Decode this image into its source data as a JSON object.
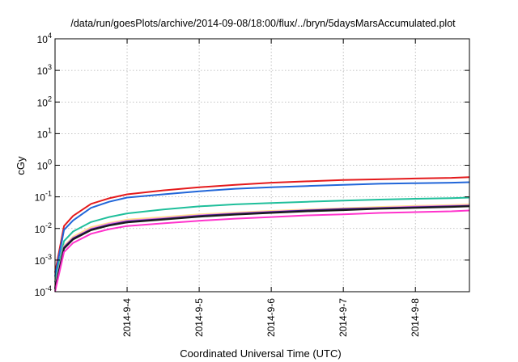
{
  "chart_data": {
    "type": "line",
    "title": "/data/run/goesPlots/archive/2014-09-08/18:00/flux/../bryn/5daysMarsAccumulated.plot",
    "xlabel": "Coordinated Universal Time (UTC)",
    "ylabel": "cGy",
    "yscale": "log",
    "ylim": [
      0.0001,
      10000
    ],
    "y_ticks": [
      {
        "base": "10",
        "exp": "-4",
        "value": 0.0001
      },
      {
        "base": "10",
        "exp": "-3",
        "value": 0.001
      },
      {
        "base": "10",
        "exp": "-2",
        "value": 0.01
      },
      {
        "base": "10",
        "exp": "-1",
        "value": 0.1
      },
      {
        "base": "10",
        "exp": "0",
        "value": 1
      },
      {
        "base": "10",
        "exp": "1",
        "value": 10
      },
      {
        "base": "10",
        "exp": "2",
        "value": 100
      },
      {
        "base": "10",
        "exp": "3",
        "value": 1000
      },
      {
        "base": "10",
        "exp": "4",
        "value": 10000
      }
    ],
    "xlim": [
      "2014-09-03 00:00",
      "2014-09-08 18:00"
    ],
    "x_ticks": [
      "2014-9-4",
      "2014-9-5",
      "2014-9-6",
      "2014-9-7",
      "2014-9-8"
    ],
    "grid": true,
    "series": [
      {
        "color": "#e41a1c",
        "x": [
          "2014-09-03 00:00",
          "2014-09-03 03:00",
          "2014-09-03 06:00",
          "2014-09-03 12:00",
          "2014-09-03 18:00",
          "2014-09-04 00:00",
          "2014-09-04 12:00",
          "2014-09-05 00:00",
          "2014-09-05 12:00",
          "2014-09-06 00:00",
          "2014-09-06 12:00",
          "2014-09-07 00:00",
          "2014-09-07 12:00",
          "2014-09-08 00:00",
          "2014-09-08 12:00",
          "2014-09-08 18:00"
        ],
        "values": [
          0.0004,
          0.012,
          0.025,
          0.06,
          0.09,
          0.12,
          0.16,
          0.2,
          0.24,
          0.28,
          0.31,
          0.34,
          0.36,
          0.38,
          0.4,
          0.42
        ]
      },
      {
        "color": "#2166d9",
        "x": [
          "2014-09-03 00:00",
          "2014-09-03 03:00",
          "2014-09-03 06:00",
          "2014-09-03 12:00",
          "2014-09-03 18:00",
          "2014-09-04 00:00",
          "2014-09-04 12:00",
          "2014-09-05 00:00",
          "2014-09-05 12:00",
          "2014-09-06 00:00",
          "2014-09-06 12:00",
          "2014-09-07 00:00",
          "2014-09-07 12:00",
          "2014-09-08 00:00",
          "2014-09-08 12:00",
          "2014-09-08 18:00"
        ],
        "values": [
          0.0003,
          0.009,
          0.018,
          0.045,
          0.07,
          0.095,
          0.12,
          0.15,
          0.18,
          0.2,
          0.22,
          0.24,
          0.26,
          0.27,
          0.28,
          0.29
        ]
      },
      {
        "color": "#1fbf9b",
        "x": [
          "2014-09-03 00:00",
          "2014-09-03 03:00",
          "2014-09-03 06:00",
          "2014-09-03 12:00",
          "2014-09-03 18:00",
          "2014-09-04 00:00",
          "2014-09-04 12:00",
          "2014-09-05 00:00",
          "2014-09-05 12:00",
          "2014-09-06 00:00",
          "2014-09-06 12:00",
          "2014-09-07 00:00",
          "2014-09-07 12:00",
          "2014-09-08 00:00",
          "2014-09-08 12:00",
          "2014-09-08 18:00"
        ],
        "values": [
          0.0002,
          0.004,
          0.008,
          0.016,
          0.023,
          0.03,
          0.04,
          0.05,
          0.058,
          0.064,
          0.07,
          0.076,
          0.082,
          0.087,
          0.091,
          0.095
        ]
      },
      {
        "color": "#ffe08a",
        "x": [
          "2014-09-03 00:00",
          "2014-09-03 03:00",
          "2014-09-03 06:00",
          "2014-09-03 12:00",
          "2014-09-03 18:00",
          "2014-09-04 00:00",
          "2014-09-04 12:00",
          "2014-09-05 00:00",
          "2014-09-05 12:00",
          "2014-09-06 00:00",
          "2014-09-06 12:00",
          "2014-09-07 00:00",
          "2014-09-07 12:00",
          "2014-09-08 00:00",
          "2014-09-08 12:00",
          "2014-09-08 18:00"
        ],
        "values": [
          0.00015,
          0.0028,
          0.0055,
          0.011,
          0.015,
          0.019,
          0.023,
          0.028,
          0.032,
          0.036,
          0.04,
          0.044,
          0.048,
          0.052,
          0.055,
          0.058
        ]
      },
      {
        "color": "#e879e8",
        "x": [
          "2014-09-03 00:00",
          "2014-09-03 03:00",
          "2014-09-03 06:00",
          "2014-09-03 12:00",
          "2014-09-03 18:00",
          "2014-09-04 00:00",
          "2014-09-04 12:00",
          "2014-09-05 00:00",
          "2014-09-05 12:00",
          "2014-09-06 00:00",
          "2014-09-06 12:00",
          "2014-09-07 00:00",
          "2014-09-07 12:00",
          "2014-09-08 00:00",
          "2014-09-08 12:00",
          "2014-09-08 18:00"
        ],
        "values": [
          0.00014,
          0.0026,
          0.005,
          0.0098,
          0.014,
          0.0175,
          0.021,
          0.026,
          0.03,
          0.034,
          0.038,
          0.042,
          0.045,
          0.049,
          0.052,
          0.054
        ]
      },
      {
        "color": "#3a1a7a",
        "x": [
          "2014-09-03 00:00",
          "2014-09-03 03:00",
          "2014-09-03 06:00",
          "2014-09-03 12:00",
          "2014-09-03 18:00",
          "2014-09-04 00:00",
          "2014-09-04 12:00",
          "2014-09-05 00:00",
          "2014-09-05 12:00",
          "2014-09-06 00:00",
          "2014-09-06 12:00",
          "2014-09-07 00:00",
          "2014-09-07 12:00",
          "2014-09-08 00:00",
          "2014-09-08 12:00",
          "2014-09-08 18:00"
        ],
        "values": [
          0.00013,
          0.0025,
          0.0048,
          0.0093,
          0.013,
          0.0165,
          0.02,
          0.025,
          0.029,
          0.033,
          0.037,
          0.041,
          0.044,
          0.047,
          0.05,
          0.052
        ]
      },
      {
        "color": "#1a1a1a",
        "x": [
          "2014-09-03 00:00",
          "2014-09-03 03:00",
          "2014-09-03 06:00",
          "2014-09-03 12:00",
          "2014-09-03 18:00",
          "2014-09-04 00:00",
          "2014-09-04 12:00",
          "2014-09-05 00:00",
          "2014-09-05 12:00",
          "2014-09-06 00:00",
          "2014-09-06 12:00",
          "2014-09-07 00:00",
          "2014-09-07 12:00",
          "2014-09-08 00:00",
          "2014-09-08 12:00",
          "2014-09-08 18:00"
        ],
        "values": [
          0.00012,
          0.0023,
          0.0045,
          0.0088,
          0.0124,
          0.0155,
          0.019,
          0.0235,
          0.0275,
          0.031,
          0.035,
          0.038,
          0.042,
          0.045,
          0.048,
          0.05
        ]
      },
      {
        "color": "#ff33cc",
        "x": [
          "2014-09-03 00:00",
          "2014-09-03 03:00",
          "2014-09-03 06:00",
          "2014-09-03 12:00",
          "2014-09-03 18:00",
          "2014-09-04 00:00",
          "2014-09-04 12:00",
          "2014-09-05 00:00",
          "2014-09-05 12:00",
          "2014-09-06 00:00",
          "2014-09-06 12:00",
          "2014-09-07 00:00",
          "2014-09-07 12:00",
          "2014-09-08 00:00",
          "2014-09-08 12:00",
          "2014-09-08 18:00"
        ],
        "values": [
          0.0001,
          0.0018,
          0.0035,
          0.0068,
          0.0095,
          0.012,
          0.0145,
          0.0175,
          0.0205,
          0.023,
          0.026,
          0.028,
          0.031,
          0.033,
          0.035,
          0.037
        ]
      }
    ]
  }
}
